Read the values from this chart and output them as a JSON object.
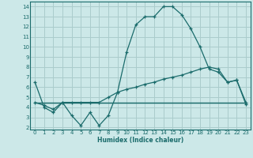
{
  "xlabel": "Humidex (Indice chaleur)",
  "bg_color": "#cce8e8",
  "grid_color": "#aacccc",
  "line_color": "#1a6b6b",
  "xlim": [
    -0.5,
    23.5
  ],
  "ylim": [
    1.8,
    14.5
  ],
  "yticks": [
    2,
    3,
    4,
    5,
    6,
    7,
    8,
    9,
    10,
    11,
    12,
    13,
    14
  ],
  "xticks": [
    0,
    1,
    2,
    3,
    4,
    5,
    6,
    7,
    8,
    9,
    10,
    11,
    12,
    13,
    14,
    15,
    16,
    17,
    18,
    19,
    20,
    21,
    22,
    23
  ],
  "line1_x": [
    0,
    1,
    2,
    3,
    4,
    5,
    6,
    7,
    8,
    9,
    10,
    11,
    12,
    13,
    14,
    15,
    16,
    17,
    18,
    19,
    20,
    21,
    22,
    23
  ],
  "line1_y": [
    6.5,
    4.0,
    3.5,
    4.5,
    3.2,
    2.2,
    3.5,
    2.2,
    3.2,
    5.5,
    9.5,
    12.2,
    13.0,
    13.0,
    14.0,
    14.0,
    13.2,
    11.8,
    10.0,
    7.8,
    7.5,
    6.5,
    6.7,
    4.3
  ],
  "line2_x": [
    0,
    1,
    2,
    3,
    4,
    5,
    6,
    7,
    8,
    9,
    10,
    11,
    12,
    13,
    14,
    15,
    16,
    17,
    18,
    19,
    20,
    21,
    22,
    23
  ],
  "line2_y": [
    4.5,
    4.2,
    3.8,
    4.5,
    4.5,
    4.5,
    4.5,
    4.5,
    5.0,
    5.5,
    5.8,
    6.0,
    6.3,
    6.5,
    6.8,
    7.0,
    7.2,
    7.5,
    7.8,
    8.0,
    7.8,
    6.5,
    6.7,
    4.5
  ],
  "line3_x": [
    0,
    23
  ],
  "line3_y": [
    4.5,
    4.5
  ],
  "line4_x": [
    0,
    9,
    14,
    23
  ],
  "line4_y": [
    4.5,
    4.5,
    4.5,
    4.5
  ]
}
